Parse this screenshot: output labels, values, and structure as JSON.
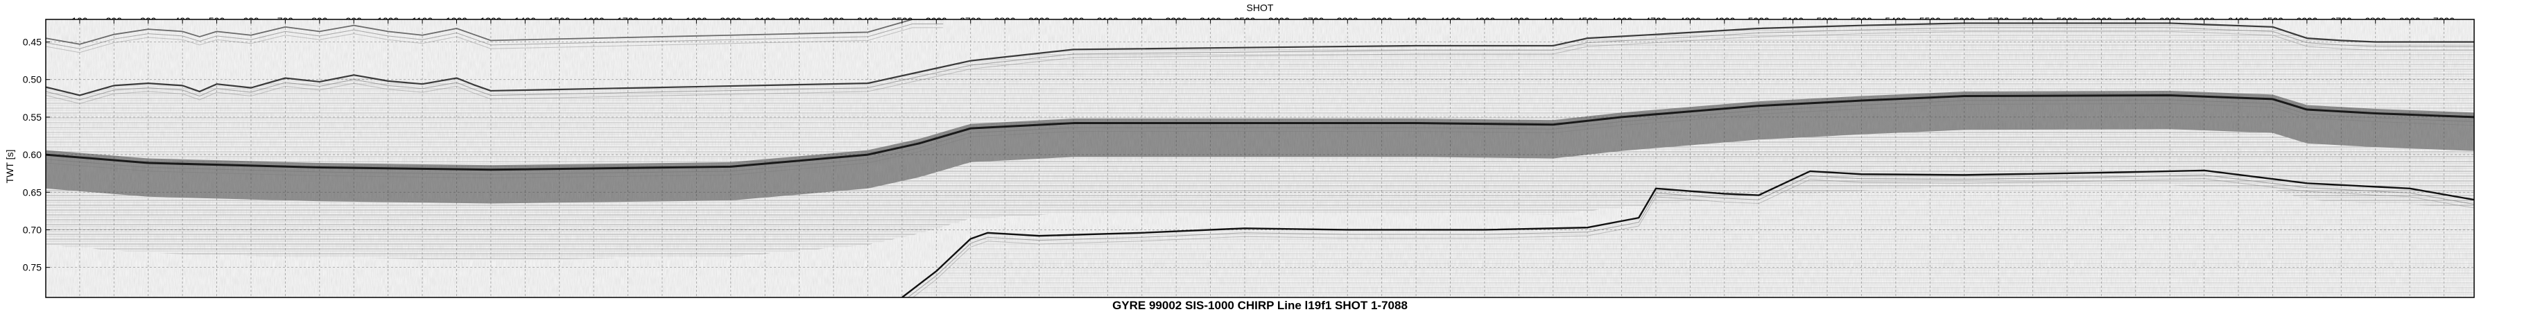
{
  "chart_data": {
    "type": "seismic-section",
    "title": "GYRE 99002 SIS-1000 CHIRP Line l19f1 SHOT 1-7088",
    "xlabel": "SHOT",
    "ylabel": "TWT [s]",
    "xlim": [
      1,
      7088
    ],
    "ylim": [
      0.42,
      0.79
    ],
    "x_ticks": [
      "100",
      "200",
      "300",
      "400",
      "500",
      "600",
      "700",
      "800",
      "900",
      "1000",
      "1100",
      "1200",
      "1300",
      "1400",
      "1500",
      "1600",
      "1700",
      "1800",
      "1900",
      "2000",
      "2100",
      "2200",
      "2300",
      "2400",
      "2500",
      "2600",
      "2700",
      "2800",
      "2900",
      "3000",
      "3100",
      "3200",
      "3300",
      "3400",
      "3500",
      "3600",
      "3700",
      "3800",
      "3900",
      "4000",
      "4100",
      "4200",
      "4300",
      "4400",
      "4500",
      "4600",
      "4700",
      "4800",
      "4900",
      "5000",
      "5100",
      "5200",
      "5300",
      "5400",
      "5500",
      "5600",
      "5700",
      "5800",
      "5900",
      "6000",
      "6100",
      "6200",
      "6300",
      "6400",
      "6500",
      "6600",
      "6700",
      "6800",
      "6900",
      "7000"
    ],
    "y_ticks": [
      "0.45",
      "0.50",
      "0.55",
      "0.60",
      "0.65",
      "0.70",
      "0.75"
    ],
    "grid": true,
    "reflectors": [
      {
        "role": "water-bottom",
        "x": [
          1,
          100,
          200,
          300,
          400,
          450,
          500,
          600,
          700,
          800,
          900,
          1000,
          1100,
          1200,
          1250,
          1300,
          2400,
          2550,
          2700,
          3000,
          4000,
          4400,
          4500,
          4700,
          5000,
          5300,
          5600,
          6200,
          6500,
          6600,
          6700,
          6800,
          7088
        ],
        "y": [
          0.51,
          0.521,
          0.508,
          0.505,
          0.508,
          0.516,
          0.506,
          0.511,
          0.498,
          0.503,
          0.494,
          0.502,
          0.506,
          0.498,
          0.507,
          0.515,
          0.505,
          0.49,
          0.475,
          0.46,
          0.455,
          0.455,
          0.445,
          0.44,
          0.432,
          0.428,
          0.425,
          0.425,
          0.43,
          0.445,
          0.448,
          0.45,
          0.45
        ]
      },
      {
        "role": "upper-ghost",
        "x": [
          1,
          100,
          200,
          300,
          400,
          450,
          500,
          600,
          700,
          800,
          900,
          1000,
          1100,
          1200,
          1250,
          1300,
          2400,
          2530,
          2620
        ],
        "y": [
          0.445,
          0.453,
          0.44,
          0.433,
          0.436,
          0.443,
          0.436,
          0.441,
          0.43,
          0.436,
          0.428,
          0.436,
          0.441,
          0.432,
          0.44,
          0.448,
          0.437,
          0.42,
          0.42
        ]
      },
      {
        "role": "main-reflector",
        "x": [
          1,
          300,
          800,
          1300,
          2000,
          2400,
          2550,
          2700,
          3000,
          4000,
          4400,
          4600,
          5000,
          5300,
          5600,
          6200,
          6500,
          6600,
          6800,
          7088
        ],
        "y": [
          0.6,
          0.611,
          0.617,
          0.62,
          0.616,
          0.6,
          0.585,
          0.565,
          0.558,
          0.558,
          0.56,
          0.55,
          0.535,
          0.528,
          0.522,
          0.521,
          0.526,
          0.54,
          0.545,
          0.55
        ]
      },
      {
        "role": "deep-horizon",
        "x": [
          2500,
          2600,
          2700,
          2750,
          2900,
          3200,
          3500,
          3800,
          4200,
          4500,
          4650,
          4700,
          4900,
          5000,
          5150,
          5300,
          5600,
          6000,
          6300,
          6600,
          6900,
          7088
        ],
        "y": [
          0.79,
          0.755,
          0.712,
          0.704,
          0.708,
          0.704,
          0.698,
          0.7,
          0.7,
          0.697,
          0.684,
          0.645,
          0.652,
          0.654,
          0.622,
          0.626,
          0.627,
          0.624,
          0.621,
          0.638,
          0.645,
          0.66
        ]
      }
    ]
  }
}
